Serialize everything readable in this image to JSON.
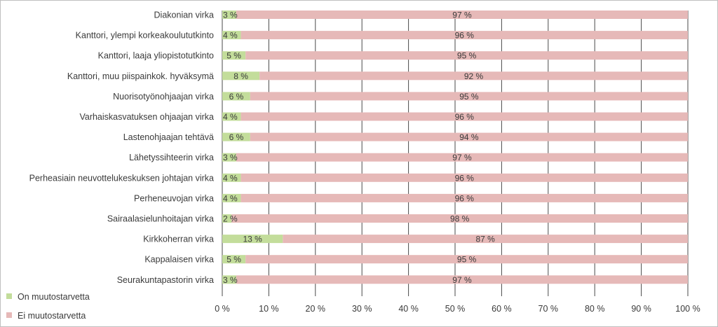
{
  "chart_data": {
    "type": "bar",
    "orientation": "horizontal",
    "stacked": "percent",
    "categories": [
      "Diakonian virka",
      "Kanttori, ylempi korkeakoulututkinto",
      "Kanttori, laaja yliopistotutkinto",
      "Kanttori, muu piispainkok. hyväksymä",
      "Nuorisotyönohjaajan virka",
      "Varhaiskasvatuksen ohjaajan virka",
      "Lastenohjaajan tehtävä",
      "Lähetyssihteerin virka",
      "Perheasiain neuvottelukeskuksen johtajan virka",
      "Perheneuvojan virka",
      "Sairaalasielunhoitajan virka",
      "Kirkkoherran virka",
      "Kappalaisen virka",
      "Seurakuntapastorin virka"
    ],
    "series": [
      {
        "name": "On muutostarvetta",
        "color": "#c3dd9b",
        "values": [
          3,
          4,
          5,
          8,
          6,
          4,
          6,
          3,
          4,
          4,
          2,
          13,
          5,
          3
        ],
        "labels": [
          "3 %",
          "4 %",
          "5 %",
          "8 %",
          "6 %",
          "4 %",
          "6 %",
          "3 %",
          "4 %",
          "4 %",
          "2 %",
          "13 %",
          "5 %",
          "3 %"
        ]
      },
      {
        "name": "Ei muutostarvetta",
        "color": "#e6b9b8",
        "values": [
          97,
          96,
          95,
          92,
          95,
          96,
          94,
          97,
          96,
          96,
          98,
          87,
          95,
          97
        ],
        "labels": [
          "97 %",
          "96 %",
          "95 %",
          "92 %",
          "95 %",
          "96 %",
          "94 %",
          "97 %",
          "96 %",
          "96 %",
          "98 %",
          "87 %",
          "95 %",
          "97 %"
        ]
      }
    ],
    "xlim": [
      0,
      100
    ],
    "xticks": [
      0,
      10,
      20,
      30,
      40,
      50,
      60,
      70,
      80,
      90,
      100
    ],
    "xtick_labels": [
      "0 %",
      "10 %",
      "20 %",
      "30 %",
      "40 %",
      "50 %",
      "60 %",
      "70 %",
      "80 %",
      "90 %",
      "100 %"
    ],
    "grid": true,
    "gridline_color": "#4a4a4a",
    "legend_position": "bottom-left",
    "title": "",
    "xlabel": "",
    "ylabel": ""
  }
}
